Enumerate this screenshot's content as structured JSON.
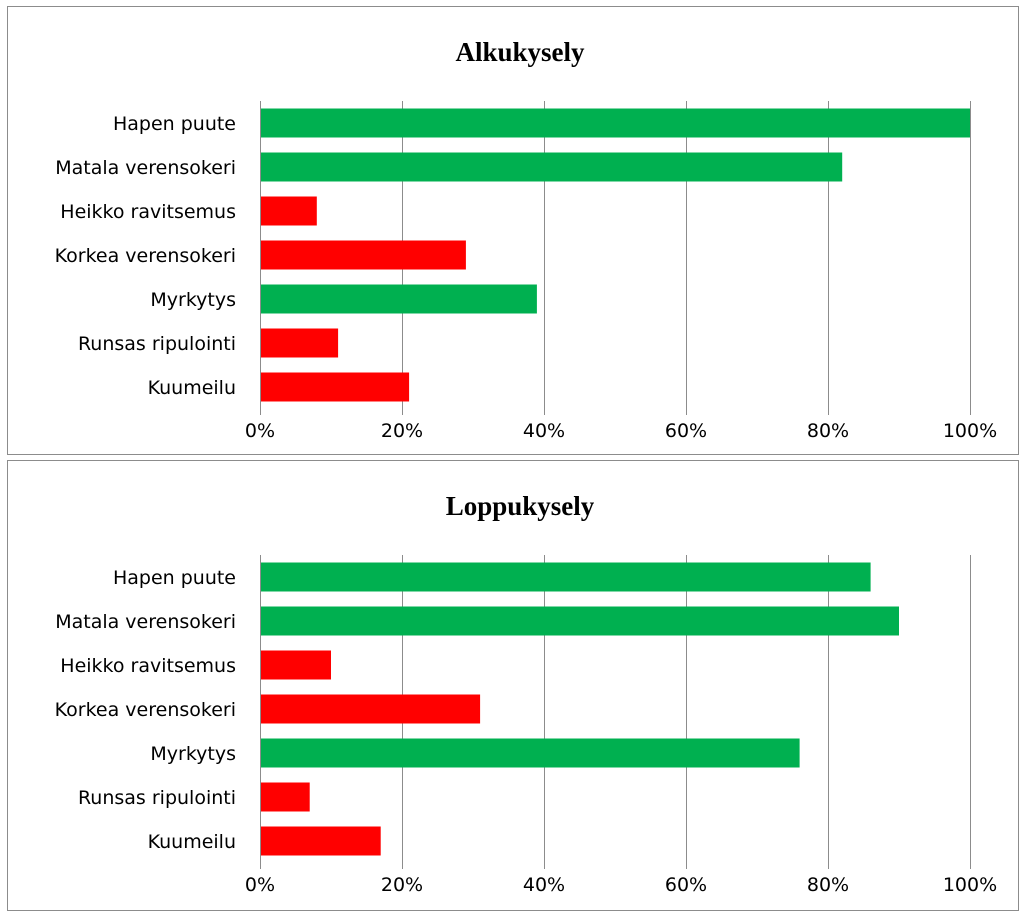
{
  "chart_data": [
    {
      "type": "bar",
      "orientation": "horizontal",
      "title": "Alkukysely",
      "categories": [
        "Hapen puute",
        "Matala verensokeri",
        "Heikko ravitsemus",
        "Korkea verensokeri",
        "Myrkytys",
        "Runsas ripulointi",
        "Kuumeilu"
      ],
      "values": [
        100,
        82,
        8,
        29,
        39,
        11,
        21
      ],
      "bar_colors": [
        "#00b050",
        "#00b050",
        "#ff0000",
        "#ff0000",
        "#00b050",
        "#ff0000",
        "#ff0000"
      ],
      "xlim": [
        0,
        100
      ],
      "x_ticks": [
        "0%",
        "20%",
        "40%",
        "60%",
        "80%",
        "100%"
      ],
      "grid": true,
      "legend": "none"
    },
    {
      "type": "bar",
      "orientation": "horizontal",
      "title": "Loppukysely",
      "categories": [
        "Hapen puute",
        "Matala verensokeri",
        "Heikko ravitsemus",
        "Korkea verensokeri",
        "Myrkytys",
        "Runsas ripulointi",
        "Kuumeilu"
      ],
      "values": [
        86,
        90,
        10,
        31,
        76,
        7,
        17
      ],
      "bar_colors": [
        "#00b050",
        "#00b050",
        "#ff0000",
        "#ff0000",
        "#00b050",
        "#ff0000",
        "#ff0000"
      ],
      "xlim": [
        0,
        100
      ],
      "x_ticks": [
        "0%",
        "20%",
        "40%",
        "60%",
        "80%",
        "100%"
      ],
      "grid": true,
      "legend": "none"
    }
  ]
}
